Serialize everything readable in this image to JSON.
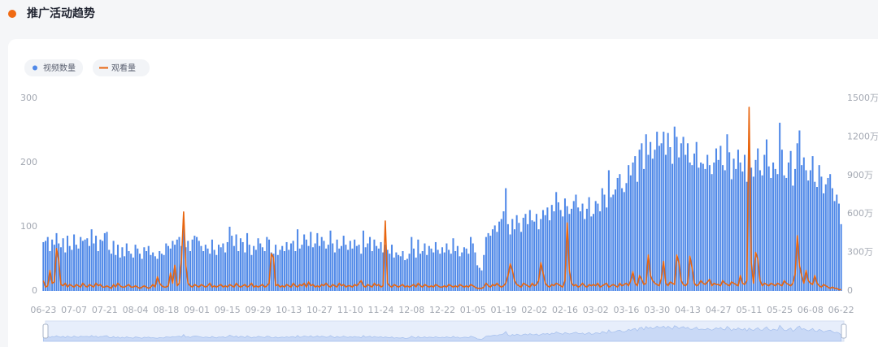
{
  "chart_data": {
    "type": "bar-line",
    "title": "推广活动趋势",
    "legend": "top-left",
    "grid": false,
    "categories": [
      "06-23",
      null,
      null,
      null,
      null,
      null,
      null,
      null,
      null,
      null,
      null,
      null,
      null,
      null,
      "07-07",
      null,
      null,
      null,
      null,
      null,
      null,
      null,
      null,
      null,
      null,
      null,
      null,
      null,
      "07-21",
      null,
      null,
      null,
      null,
      null,
      null,
      null,
      null,
      null,
      null,
      null,
      null,
      null,
      "08-04",
      null,
      null,
      null,
      null,
      null,
      null,
      null,
      null,
      null,
      null,
      null,
      null,
      null,
      "08-18",
      null,
      null,
      null,
      null,
      null,
      null,
      null,
      null,
      null,
      null,
      null,
      null,
      null,
      "09-01",
      null,
      null,
      null,
      null,
      null,
      null,
      null,
      null,
      null,
      null,
      null,
      null,
      null,
      "09-15",
      null,
      null,
      null,
      null,
      null,
      null,
      null,
      null,
      null,
      null,
      null,
      null,
      null,
      "09-29",
      null,
      null,
      null,
      null,
      null,
      null,
      null,
      null,
      null,
      null,
      null,
      null,
      null,
      "10-13",
      null,
      null,
      null,
      null,
      null,
      null,
      null,
      null,
      null,
      null,
      null,
      null,
      null,
      "10-27",
      null,
      null,
      null,
      null,
      null,
      null,
      null,
      null,
      null,
      null,
      null,
      null,
      null,
      "11-10",
      null,
      null,
      null,
      null,
      null,
      null,
      null,
      null,
      null,
      null,
      null,
      null,
      null,
      "11-24",
      null,
      null,
      null,
      null,
      null,
      null,
      null,
      null,
      null,
      null,
      null,
      null,
      null,
      "12-08",
      null,
      null,
      null,
      null,
      null,
      null,
      null,
      null,
      null,
      null,
      null,
      null,
      null,
      "12-22",
      null,
      null,
      null,
      null,
      null,
      null,
      null,
      null,
      null,
      null,
      null,
      null,
      null,
      "01-05",
      null,
      null,
      null,
      null,
      null,
      null,
      null,
      null,
      null,
      null,
      null,
      null,
      null,
      "01-19",
      null,
      null,
      null,
      null,
      null,
      null,
      null,
      null,
      null,
      null,
      null,
      null,
      null,
      "02-02",
      null,
      null,
      null,
      null,
      null,
      null,
      null,
      null,
      null,
      null,
      null,
      null,
      null,
      "02-16",
      null,
      null,
      null,
      null,
      null,
      null,
      null,
      null,
      null,
      null,
      null,
      null,
      null,
      "03-02",
      null,
      null,
      null,
      null,
      null,
      null,
      null,
      null,
      null,
      null,
      null,
      null,
      null,
      "03-16",
      null,
      null,
      null,
      null,
      null,
      null,
      null,
      null,
      null,
      null,
      null,
      null,
      null,
      "03-30",
      null,
      null,
      null,
      null,
      null,
      null,
      null,
      null,
      null,
      null,
      null,
      null,
      null,
      "04-13",
      null,
      null,
      null,
      null,
      null,
      null,
      null,
      null,
      null,
      null,
      null,
      null,
      null,
      "04-27",
      null,
      null,
      null,
      null,
      null,
      null,
      null,
      null,
      null,
      null,
      null,
      null,
      null,
      "05-11",
      null,
      null,
      null,
      null,
      null,
      null,
      null,
      null,
      null,
      null,
      null,
      null,
      null,
      "05-25",
      null,
      null,
      null,
      null,
      null,
      null,
      null,
      null,
      null,
      null,
      null,
      null,
      null,
      "06-08",
      null,
      null,
      null,
      null,
      null,
      null,
      null,
      null,
      null,
      null,
      null,
      null,
      null,
      "06-22"
    ],
    "series": [
      {
        "name": "视频数量",
        "color": "#5089e8",
        "kind": "bar",
        "values": [
          76,
          78,
          84,
          62,
          80,
          72,
          90,
          74,
          68,
          82,
          60,
          86,
          70,
          64,
          88,
          72,
          66,
          84,
          78,
          80,
          82,
          70,
          96,
          74,
          86,
          62,
          80,
          78,
          90,
          92,
          64,
          58,
          78,
          56,
          72,
          52,
          68,
          54,
          74,
          62,
          58,
          52,
          72,
          66,
          58,
          50,
          68,
          62,
          70,
          56,
          60,
          54,
          50,
          62,
          58,
          56,
          74,
          70,
          66,
          78,
          72,
          80,
          84,
          70,
          112,
          68,
          78,
          62,
          80,
          86,
          84,
          78,
          70,
          62,
          72,
          66,
          58,
          80,
          64,
          56,
          72,
          68,
          74,
          60,
          76,
          100,
          86,
          70,
          88,
          62,
          82,
          76,
          60,
          90,
          72,
          56,
          70,
          64,
          82,
          74,
          68,
          62,
          84,
          80,
          60,
          58,
          72,
          56,
          64,
          70,
          62,
          76,
          64,
          74,
          78,
          62,
          96,
          66,
          72,
          88,
          80,
          70,
          92,
          68,
          74,
          90,
          70,
          84,
          78,
          66,
          72,
          94,
          74,
          60,
          80,
          66,
          70,
          86,
          72,
          64,
          78,
          66,
          80,
          70,
          72,
          58,
          94,
          68,
          74,
          84,
          62,
          80,
          70,
          66,
          76,
          60,
          72,
          64,
          58,
          72,
          52,
          60,
          56,
          54,
          62,
          48,
          50,
          58,
          84,
          66,
          52,
          80,
          58,
          62,
          74,
          56,
          70,
          66,
          60,
          76,
          64,
          58,
          68,
          60,
          74,
          64,
          58,
          82,
          62,
          70,
          54,
          60,
          68,
          66,
          58,
          84,
          74,
          60,
          40,
          36,
          32,
          56,
          84,
          90,
          86,
          96,
          102,
          92,
          108,
          112,
          124,
          160,
          104,
          88,
          112,
          96,
          118,
          106,
          92,
          114,
          120,
          104,
          126,
          110,
          108,
          120,
          96,
          112,
          126,
          118,
          130,
          110,
          134,
          124,
          154,
          138,
          126,
          116,
          144,
          132,
          120,
          128,
          140,
          150,
          130,
          124,
          136,
          112,
          128,
          146,
          116,
          120,
          140,
          136,
          124,
          160,
          150,
          130,
          188,
          146,
          150,
          158,
          176,
          182,
          160,
          154,
          168,
          196,
          180,
          200,
          210,
          170,
          220,
          230,
          190,
          244,
          212,
          232,
          206,
          220,
          248,
          226,
          230,
          248,
          212,
          246,
          224,
          198,
          256,
          240,
          208,
          230,
          240,
          212,
          230,
          200,
          196,
          214,
          232,
          192,
          200,
          198,
          190,
          212,
          196,
          182,
          200,
          222,
          204,
          226,
          196,
          188,
          244,
          216,
          174,
          206,
          190,
          220,
          200,
          186,
          212,
          170,
          216,
          192,
          178,
          204,
          222,
          188,
          180,
          212,
          236,
          194,
          176,
          200,
          190,
          182,
          262,
          220,
          180,
          176,
          200,
          218,
          164,
          190,
          230,
          250,
          196,
          208,
          188,
          172,
          188,
          210,
          170,
          162,
          196,
          178,
          152,
          166,
          176,
          182,
          160,
          140,
          150,
          136,
          104
        ]
      },
      {
        "name": "观看量",
        "color": "#e8650f",
        "kind": "line",
        "axis": "y2",
        "values": [
          80,
          30,
          40,
          160,
          60,
          70,
          330,
          240,
          50,
          40,
          60,
          30,
          50,
          40,
          30,
          50,
          40,
          30,
          60,
          40,
          30,
          50,
          40,
          30,
          60,
          40,
          50,
          30,
          30,
          40,
          30,
          20,
          50,
          30,
          60,
          40,
          30,
          30,
          40,
          50,
          30,
          30,
          40,
          30,
          20,
          30,
          40,
          30,
          20,
          30,
          50,
          30,
          110,
          60,
          40,
          30,
          30,
          40,
          140,
          60,
          200,
          40,
          60,
          240,
          615,
          200,
          60,
          40,
          30,
          50,
          40,
          30,
          50,
          40,
          30,
          40,
          60,
          30,
          40,
          30,
          40,
          50,
          30,
          40,
          30,
          50,
          40,
          30,
          60,
          40,
          30,
          40,
          50,
          30,
          40,
          60,
          30,
          40,
          30,
          40,
          50,
          30,
          40,
          60,
          290,
          260,
          40,
          50,
          30,
          40,
          30,
          50,
          40,
          30,
          60,
          40,
          30,
          50,
          40,
          60,
          30,
          70,
          40,
          50,
          30,
          40,
          30,
          50,
          40,
          60,
          40,
          30,
          50,
          40,
          30,
          60,
          40,
          50,
          30,
          40,
          40,
          30,
          50,
          40,
          60,
          80,
          40,
          30,
          50,
          40,
          30,
          60,
          40,
          50,
          30,
          40,
          545,
          60,
          40,
          30,
          50,
          40,
          30,
          40,
          50,
          30,
          40,
          30,
          40,
          50,
          30,
          60,
          40,
          30,
          50,
          40,
          30,
          40,
          30,
          50,
          40,
          30,
          30,
          40,
          30,
          50,
          40,
          30,
          40,
          30,
          50,
          40,
          30,
          40,
          30,
          50,
          40,
          30,
          20,
          20,
          20,
          30,
          60,
          40,
          30,
          50,
          40,
          60,
          40,
          30,
          40,
          60,
          120,
          210,
          160,
          80,
          50,
          40,
          30,
          60,
          50,
          40,
          30,
          60,
          40,
          50,
          80,
          220,
          140,
          60,
          40,
          30,
          50,
          40,
          60,
          50,
          40,
          30,
          80,
          530,
          160,
          60,
          40,
          50,
          30,
          40,
          60,
          40,
          30,
          50,
          40,
          50,
          40,
          60,
          30,
          40,
          50,
          60,
          30,
          40,
          50,
          40,
          30,
          60,
          40,
          50,
          60,
          40,
          80,
          150,
          60,
          40,
          120,
          90,
          50,
          60,
          280,
          120,
          80,
          60,
          50,
          40,
          100,
          230,
          60,
          40,
          70,
          60,
          50,
          280,
          220,
          80,
          50,
          40,
          60,
          270,
          180,
          60,
          40,
          50,
          80,
          60,
          50,
          70,
          90,
          40,
          60,
          50,
          50,
          40,
          80,
          60,
          50,
          40,
          70,
          60,
          50,
          40,
          120,
          60,
          50,
          80,
          1430,
          220,
          60,
          300,
          250,
          80,
          40,
          60,
          50,
          40,
          60,
          50,
          40,
          60,
          50,
          40,
          80,
          60,
          50,
          40,
          60,
          130,
          430,
          200,
          120,
          60,
          160,
          80,
          60,
          50,
          120,
          60,
          40,
          30,
          50,
          40,
          30,
          20,
          30,
          20,
          20,
          10,
          10
        ]
      }
    ],
    "ylim": [
      0,
      300
    ],
    "yticks": [
      0,
      100,
      200,
      300
    ],
    "y2lim": [
      0,
      1500
    ],
    "y2ticks": [
      0,
      {
        "value": 300,
        "label": "300万"
      },
      {
        "value": 600,
        "label": "600万"
      },
      {
        "value": 900,
        "label": "900万"
      },
      {
        "value": 1200,
        "label": "1200万"
      },
      {
        "value": 1500,
        "label": "1500万"
      }
    ]
  }
}
